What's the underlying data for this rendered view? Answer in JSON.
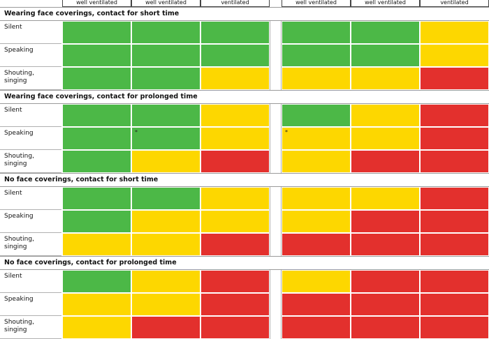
{
  "colors": {
    "green": "#4cb847",
    "yellow": "#fdd700",
    "red": "#e3302d"
  },
  "chart_data": {
    "type": "table",
    "column_headers": [
      "well ventilated",
      "well ventilated",
      "ventilated",
      "well ventilated",
      "well ventilated",
      "ventilated"
    ],
    "sections": [
      {
        "title": "Wearing face coverings, contact for short time",
        "rows": [
          {
            "label": "Silent",
            "cells": [
              {
                "v": "green"
              },
              {
                "v": "green"
              },
              {
                "v": "green"
              },
              {
                "v": "green"
              },
              {
                "v": "green"
              },
              {
                "v": "yellow"
              }
            ]
          },
          {
            "label": "Speaking",
            "cells": [
              {
                "v": "green"
              },
              {
                "v": "green"
              },
              {
                "v": "green"
              },
              {
                "v": "green"
              },
              {
                "v": "green"
              },
              {
                "v": "yellow"
              }
            ]
          },
          {
            "label": "Shouting, singing",
            "cells": [
              {
                "v": "green"
              },
              {
                "v": "green"
              },
              {
                "v": "yellow"
              },
              {
                "v": "yellow"
              },
              {
                "v": "yellow"
              },
              {
                "v": "red"
              }
            ]
          }
        ]
      },
      {
        "title": "Wearing face coverings, contact for prolonged time",
        "rows": [
          {
            "label": "Silent",
            "cells": [
              {
                "v": "green"
              },
              {
                "v": "green"
              },
              {
                "v": "yellow"
              },
              {
                "v": "green"
              },
              {
                "v": "yellow"
              },
              {
                "v": "red"
              }
            ]
          },
          {
            "label": "Speaking",
            "cells": [
              {
                "v": "green"
              },
              {
                "v": "green",
                "note": "*"
              },
              {
                "v": "yellow"
              },
              {
                "v": "yellow",
                "note": "*"
              },
              {
                "v": "yellow"
              },
              {
                "v": "red"
              }
            ]
          },
          {
            "label": "Shouting, singing",
            "cells": [
              {
                "v": "green"
              },
              {
                "v": "yellow"
              },
              {
                "v": "red"
              },
              {
                "v": "yellow"
              },
              {
                "v": "red"
              },
              {
                "v": "red"
              }
            ]
          }
        ]
      },
      {
        "title": "No face coverings, contact for short time",
        "rows": [
          {
            "label": "Silent",
            "cells": [
              {
                "v": "green"
              },
              {
                "v": "green"
              },
              {
                "v": "yellow"
              },
              {
                "v": "yellow"
              },
              {
                "v": "yellow"
              },
              {
                "v": "red"
              }
            ]
          },
          {
            "label": "Speaking",
            "cells": [
              {
                "v": "green"
              },
              {
                "v": "yellow"
              },
              {
                "v": "yellow"
              },
              {
                "v": "yellow"
              },
              {
                "v": "red"
              },
              {
                "v": "red"
              }
            ]
          },
          {
            "label": "Shouting, singing",
            "cells": [
              {
                "v": "yellow"
              },
              {
                "v": "yellow"
              },
              {
                "v": "red"
              },
              {
                "v": "red"
              },
              {
                "v": "red"
              },
              {
                "v": "red"
              }
            ]
          }
        ]
      },
      {
        "title": "No face coverings, contact for prolonged time",
        "rows": [
          {
            "label": "Silent",
            "cells": [
              {
                "v": "green"
              },
              {
                "v": "yellow"
              },
              {
                "v": "red"
              },
              {
                "v": "yellow"
              },
              {
                "v": "red"
              },
              {
                "v": "red"
              }
            ]
          },
          {
            "label": "Speaking",
            "cells": [
              {
                "v": "yellow"
              },
              {
                "v": "yellow"
              },
              {
                "v": "red"
              },
              {
                "v": "red"
              },
              {
                "v": "red"
              },
              {
                "v": "red"
              }
            ]
          },
          {
            "label": "Shouting, singing",
            "cells": [
              {
                "v": "yellow"
              },
              {
                "v": "red"
              },
              {
                "v": "red"
              },
              {
                "v": "red"
              },
              {
                "v": "red"
              },
              {
                "v": "red"
              }
            ]
          }
        ]
      }
    ]
  }
}
